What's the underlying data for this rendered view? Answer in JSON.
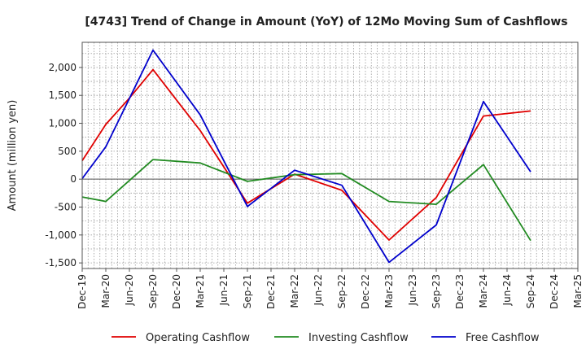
{
  "chart_data": {
    "type": "line",
    "title": "[4743]  Trend of Change in Amount (YoY) of 12Mo Moving Sum of Cashflows",
    "xlabel": "",
    "ylabel": "Amount (million yen)",
    "ylim": [
      -1600,
      2450
    ],
    "yticks": [
      -1500,
      -1000,
      -500,
      0,
      500,
      1000,
      1500,
      2000
    ],
    "ytick_labels": [
      "-1,500",
      "-1,000",
      "-500",
      "0",
      "500",
      "1,000",
      "1,500",
      "2,000"
    ],
    "categories": [
      "Dec-19",
      "Mar-20",
      "Jun-20",
      "Sep-20",
      "Dec-20",
      "Mar-21",
      "Jun-21",
      "Sep-21",
      "Dec-21",
      "Mar-22",
      "Jun-22",
      "Sep-22",
      "Dec-22",
      "Mar-23",
      "Jun-23",
      "Sep-23",
      "Dec-23",
      "Mar-24",
      "Jun-24",
      "Sep-24",
      "Dec-24",
      "Mar-25"
    ],
    "grid": true,
    "legend_position": "bottom",
    "series": [
      {
        "name": "Operating Cashflow",
        "color": "#e00000",
        "values": [
          330,
          980,
          1450,
          1960,
          null,
          870,
          null,
          -430,
          null,
          90,
          null,
          -200,
          null,
          -1090,
          null,
          -330,
          null,
          1130,
          null,
          1220,
          null,
          null
        ]
      },
      {
        "name": "Investing Cashflow",
        "color": "#228b22",
        "values": [
          -320,
          -400,
          null,
          350,
          null,
          290,
          null,
          -40,
          null,
          80,
          null,
          100,
          null,
          -400,
          null,
          -450,
          null,
          260,
          null,
          -1100,
          null,
          null
        ]
      },
      {
        "name": "Free Cashflow",
        "color": "#0000cc",
        "values": [
          10,
          580,
          null,
          2310,
          null,
          1150,
          null,
          -490,
          null,
          160,
          null,
          -110,
          null,
          -1490,
          null,
          -820,
          null,
          1390,
          null,
          130,
          null,
          null
        ]
      }
    ]
  }
}
